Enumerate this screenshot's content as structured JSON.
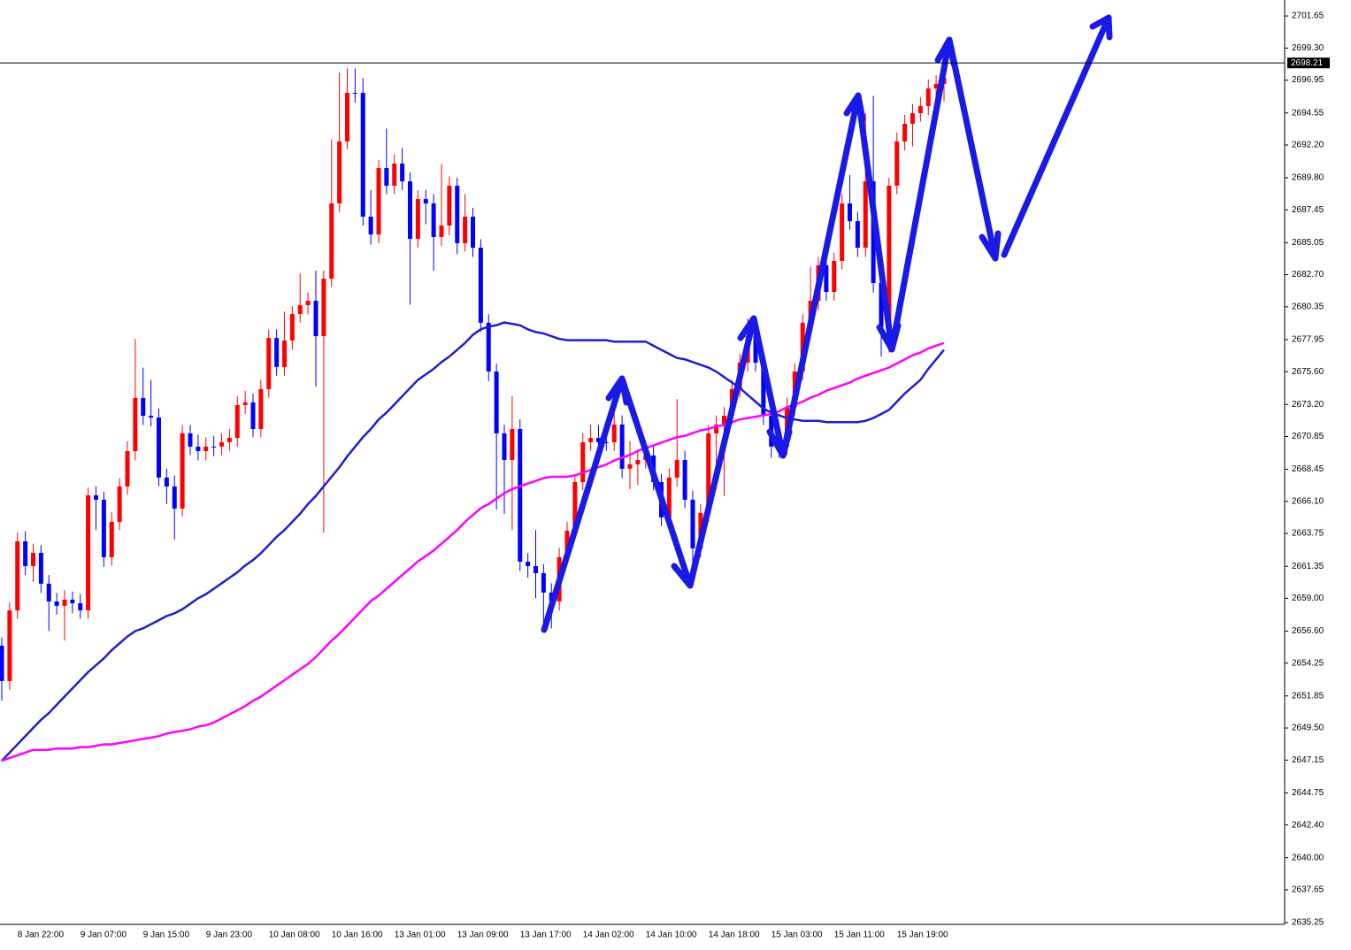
{
  "chart_data": {
    "type": "candlestick",
    "categories": [
      null,
      null,
      "8 Jan 22:00",
      null,
      null,
      null,
      null,
      null,
      null,
      null,
      "9 Jan 07:00",
      null,
      null,
      null,
      null,
      null,
      null,
      null,
      "9 Jan 15:00",
      null,
      null,
      null,
      null,
      null,
      null,
      null,
      "9 Jan 23:00",
      null,
      null,
      null,
      null,
      null,
      null,
      null,
      "10 Jan 08:00",
      null,
      null,
      null,
      null,
      null,
      null,
      null,
      "10 Jan 16:00",
      null,
      null,
      null,
      null,
      null,
      null,
      null,
      "13 Jan 01:00",
      null,
      null,
      null,
      null,
      null,
      null,
      null,
      "13 Jan 09:00",
      null,
      null,
      null,
      null,
      null,
      null,
      null,
      "13 Jan 17:00",
      null,
      null,
      null,
      null,
      null,
      null,
      null,
      "14 Jan 02:00",
      null,
      null,
      null,
      null,
      null,
      null,
      null,
      "14 Jan 10:00",
      null,
      null,
      null,
      null,
      null,
      null,
      null,
      "14 Jan 18:00",
      null,
      null,
      null,
      null,
      null,
      null,
      null,
      "15 Jan 03:00",
      null,
      null,
      null,
      null,
      null,
      null,
      null,
      "15 Jan 11:00",
      null,
      null,
      null,
      null,
      null,
      null,
      null,
      "15 Jan 19:00",
      null,
      null,
      null,
      null,
      null,
      null
    ],
    "open": [
      2655.53,
      2652.94,
      2658.12,
      2663.17,
      2661.36,
      2662.33,
      2660.07,
      2658.77,
      2658.45,
      2658.9,
      2658.64,
      2658.12,
      2666.54,
      2666.22,
      2662.01,
      2664.6,
      2667.19,
      2669.78,
      2673.67,
      2672.37,
      2672.24,
      2667.84,
      2667.19,
      2665.57,
      2671.08,
      2670.11,
      2669.78,
      2670.11,
      2670.11,
      2670.43,
      2670.75,
      2673.15,
      2673.35,
      2671.4,
      2674.32,
      2678.07,
      2675.94,
      2677.88,
      2679.82,
      2680.47,
      2680.79,
      2678.2,
      2682.41,
      2687.92,
      2692.46,
      2696.02,
      2696.02,
      2686.95,
      2685.65,
      2690.51,
      2689.22,
      2690.84,
      2689.54,
      2685.33,
      2688.24,
      2687.92,
      2685.46,
      2686.3,
      2689.22,
      2685.01,
      2686.95,
      2684.68,
      2679.18,
      2675.61,
      2671.08,
      2669.13,
      2671.4,
      2661.68,
      2661.36,
      2660.84,
      2659.42,
      2658.77,
      2662.01,
      2663.95,
      2667.51,
      2670.43,
      2670.75,
      2670.43,
      2670.43,
      2671.73,
      2668.49,
      2668.81,
      2669.13,
      2669.46,
      2667.51,
      2664.92,
      2667.84,
      2669.13,
      2666.22,
      2662.66,
      2665.25,
      2671.08,
      2671.73,
      2672.37,
      2674.32,
      2676.26,
      2678.2,
      2676.26,
      2672.37,
      2670.11,
      2670.11,
      2673.02,
      2675.61,
      2679.18,
      2680.79,
      2683.39,
      2681.44,
      2683.71,
      2687.92,
      2686.62,
      2684.68,
      2689.54,
      2682.09,
      2678.85,
      2689.22,
      2692.46,
      2693.75,
      2694.53,
      2695.05,
      2696.34,
      2696.67
    ],
    "high": [
      2656.13,
      2658.7,
      2663.8,
      2663.9,
      2663.0,
      2662.9,
      2660.7,
      2659.4,
      2659.6,
      2659.5,
      2659.3,
      2667.1,
      2667.2,
      2666.8,
      2665.3,
      2667.8,
      2670.5,
      2678.0,
      2675.9,
      2675.0,
      2672.9,
      2668.5,
      2668.0,
      2671.7,
      2671.7,
      2671.0,
      2670.8,
      2670.9,
      2671.1,
      2671.4,
      2673.8,
      2674.2,
      2674.0,
      2675.0,
      2678.7,
      2678.7,
      2680.0,
      2680.4,
      2682.8,
      2681.4,
      2683.0,
      2683.0,
      2692.6,
      2697.5,
      2697.8,
      2697.8,
      2697.1,
      2688.9,
      2691.1,
      2693.4,
      2691.5,
      2692.0,
      2690.2,
      2688.9,
      2688.9,
      2688.6,
      2690.8,
      2689.9,
      2689.8,
      2688.6,
      2687.6,
      2685.3,
      2679.8,
      2676.2,
      2671.7,
      2673.8,
      2672.1,
      2662.3,
      2664.0,
      2661.5,
      2660.1,
      2662.7,
      2664.6,
      2668.1,
      2671.1,
      2671.7,
      2671.7,
      2671.1,
      2673.5,
      2672.4,
      2670.5,
      2669.8,
      2670.1,
      2670.1,
      2668.1,
      2668.5,
      2673.6,
      2669.8,
      2666.9,
      2665.9,
      2671.7,
      2672.4,
      2673.0,
      2675.0,
      2676.9,
      2679.5,
      2678.8,
      2676.9,
      2673.0,
      2671.0,
      2673.7,
      2676.2,
      2679.8,
      2683.3,
      2684.0,
      2684.6,
      2684.3,
      2688.6,
      2690.0,
      2687.3,
      2694.5,
      2695.8,
      2682.7,
      2689.8,
      2693.1,
      2694.4,
      2695.2,
      2695.7,
      2697.0,
      2697.3,
      2698.3
    ],
    "low": [
      2651.5,
      2652.3,
      2657.5,
      2660.7,
      2660.2,
      2659.4,
      2656.6,
      2657.8,
      2655.9,
      2657.9,
      2657.5,
      2657.5,
      2664.0,
      2661.3,
      2661.4,
      2664.0,
      2666.6,
      2669.1,
      2671.7,
      2671.6,
      2667.2,
      2665.9,
      2663.3,
      2665.0,
      2669.5,
      2669.1,
      2669.1,
      2669.4,
      2669.5,
      2669.8,
      2670.1,
      2672.5,
      2670.8,
      2670.8,
      2673.7,
      2675.3,
      2675.3,
      2677.2,
      2679.2,
      2679.8,
      2674.5,
      2663.8,
      2681.8,
      2687.3,
      2691.9,
      2695.3,
      2686.3,
      2684.9,
      2685.0,
      2688.6,
      2688.6,
      2688.9,
      2680.5,
      2684.7,
      2686.4,
      2683.0,
      2684.8,
      2685.6,
      2684.2,
      2684.4,
      2684.0,
      2678.5,
      2674.9,
      2665.5,
      2665.2,
      2664.0,
      2661.0,
      2660.5,
      2659.0,
      2656.8,
      2656.8,
      2658.1,
      2661.4,
      2663.3,
      2666.9,
      2669.8,
      2669.8,
      2669.8,
      2669.8,
      2667.8,
      2667.0,
      2667.3,
      2668.5,
      2666.9,
      2664.3,
      2664.3,
      2667.2,
      2665.6,
      2661.3,
      2662.0,
      2664.6,
      2667.0,
      2666.5,
      2671.7,
      2673.7,
      2675.6,
      2675.6,
      2671.7,
      2669.3,
      2669.3,
      2669.5,
      2672.4,
      2675.0,
      2678.5,
      2680.1,
      2680.8,
      2680.8,
      2683.1,
      2686.0,
      2684.0,
      2684.0,
      2681.4,
      2676.7,
      2677.0,
      2688.6,
      2691.8,
      2692.1,
      2693.9,
      2694.4,
      2694.9,
      2695.4
    ],
    "close": [
      2652.94,
      2658.12,
      2663.17,
      2661.36,
      2662.33,
      2660.07,
      2658.77,
      2658.45,
      2658.9,
      2658.64,
      2658.12,
      2666.54,
      2666.22,
      2662.01,
      2664.6,
      2667.19,
      2669.78,
      2673.67,
      2672.37,
      2672.24,
      2667.84,
      2667.19,
      2665.57,
      2671.08,
      2670.11,
      2669.78,
      2670.11,
      2670.11,
      2670.43,
      2670.75,
      2673.15,
      2673.35,
      2671.4,
      2674.32,
      2678.07,
      2675.94,
      2677.88,
      2679.82,
      2680.47,
      2680.79,
      2678.2,
      2682.41,
      2687.92,
      2692.46,
      2696.02,
      2696.02,
      2686.95,
      2685.65,
      2690.51,
      2689.22,
      2690.84,
      2689.54,
      2685.33,
      2688.24,
      2687.92,
      2685.46,
      2686.3,
      2689.22,
      2685.01,
      2686.95,
      2684.68,
      2679.18,
      2675.61,
      2671.08,
      2669.13,
      2671.4,
      2661.68,
      2661.36,
      2660.84,
      2659.42,
      2658.77,
      2662.01,
      2663.95,
      2667.51,
      2670.43,
      2670.75,
      2670.43,
      2670.43,
      2671.73,
      2668.49,
      2668.81,
      2669.13,
      2669.46,
      2667.51,
      2664.92,
      2667.84,
      2669.13,
      2666.22,
      2662.66,
      2665.25,
      2671.08,
      2671.73,
      2672.37,
      2674.32,
      2676.26,
      2678.2,
      2676.26,
      2672.37,
      2670.11,
      2670.11,
      2673.02,
      2675.61,
      2679.18,
      2680.79,
      2683.39,
      2681.44,
      2683.71,
      2687.92,
      2686.62,
      2684.68,
      2689.54,
      2682.09,
      2678.85,
      2689.22,
      2692.46,
      2693.75,
      2694.53,
      2695.05,
      2696.34,
      2696.67,
      2697.12
    ],
    "up_color": "#ff0000",
    "down_color": "#0000ff",
    "lines": [
      {
        "color": "#1e1ed2",
        "values": [
          2647.1,
          2647.7,
          2648.3,
          2648.9,
          2649.5,
          2650.1,
          2650.6,
          2651.2,
          2651.8,
          2652.4,
          2653.0,
          2653.6,
          2654.1,
          2654.6,
          2655.2,
          2655.7,
          2656.2,
          2656.6,
          2656.8,
          2657.1,
          2657.4,
          2657.7,
          2657.9,
          2658.2,
          2658.6,
          2659.0,
          2659.3,
          2659.7,
          2660.1,
          2660.5,
          2660.9,
          2661.4,
          2661.8,
          2662.3,
          2662.9,
          2663.5,
          2664.0,
          2664.6,
          2665.2,
          2665.9,
          2666.5,
          2667.2,
          2667.9,
          2668.6,
          2669.4,
          2670.1,
          2670.8,
          2671.4,
          2672.1,
          2672.6,
          2673.2,
          2673.8,
          2674.4,
          2675.0,
          2675.4,
          2675.8,
          2676.3,
          2676.7,
          2677.2,
          2677.7,
          2678.3,
          2678.7,
          2678.9,
          2679.0,
          2679.2,
          2679.1,
          2679.0,
          2678.7,
          2678.5,
          2678.4,
          2678.2,
          2678.0,
          2677.9,
          2677.9,
          2677.9,
          2677.9,
          2677.9,
          2677.9,
          2677.8,
          2677.8,
          2677.8,
          2677.8,
          2677.8,
          2677.5,
          2677.2,
          2676.9,
          2676.6,
          2676.5,
          2676.3,
          2676.1,
          2675.9,
          2675.6,
          2675.2,
          2674.8,
          2674.4,
          2673.9,
          2673.4,
          2672.9,
          2672.6,
          2672.4,
          2672.2,
          2672.1,
          2672.0,
          2672.0,
          2672.0,
          2671.9,
          2671.9,
          2671.9,
          2671.9,
          2671.9,
          2672.0,
          2672.2,
          2672.5,
          2672.8,
          2673.4,
          2674.0,
          2674.5,
          2675.0,
          2675.8,
          2676.5,
          2677.2
        ]
      },
      {
        "color": "#ff00ff",
        "values": [
          2647.1,
          2647.3,
          2647.5,
          2647.7,
          2647.9,
          2647.9,
          2647.9,
          2648.0,
          2648.0,
          2648.0,
          2648.1,
          2648.1,
          2648.2,
          2648.3,
          2648.3,
          2648.4,
          2648.5,
          2648.6,
          2648.7,
          2648.8,
          2648.9,
          2649.1,
          2649.2,
          2649.3,
          2649.4,
          2649.6,
          2649.7,
          2649.9,
          2650.2,
          2650.5,
          2650.8,
          2651.1,
          2651.5,
          2651.8,
          2652.2,
          2652.6,
          2653.0,
          2653.4,
          2653.8,
          2654.2,
          2654.7,
          2655.3,
          2655.9,
          2656.4,
          2657.0,
          2657.6,
          2658.2,
          2658.8,
          2659.2,
          2659.7,
          2660.2,
          2660.7,
          2661.2,
          2661.7,
          2662.1,
          2662.5,
          2663.0,
          2663.5,
          2664.0,
          2664.6,
          2665.1,
          2665.6,
          2665.9,
          2666.3,
          2666.7,
          2667.0,
          2667.2,
          2667.4,
          2667.6,
          2667.8,
          2667.9,
          2667.9,
          2667.9,
          2668.0,
          2668.2,
          2668.4,
          2668.6,
          2668.8,
          2669.1,
          2669.3,
          2669.5,
          2669.8,
          2670.0,
          2670.2,
          2670.4,
          2670.6,
          2670.8,
          2670.9,
          2671.1,
          2671.3,
          2671.4,
          2671.6,
          2671.7,
          2671.9,
          2672.1,
          2672.2,
          2672.3,
          2672.4,
          2672.5,
          2672.7,
          2673.0,
          2673.2,
          2673.4,
          2673.7,
          2673.9,
          2674.2,
          2674.4,
          2674.6,
          2674.8,
          2675.1,
          2675.3,
          2675.5,
          2675.7,
          2675.9,
          2676.2,
          2676.5,
          2676.8,
          2677.0,
          2677.3,
          2677.5,
          2677.7
        ]
      }
    ],
    "current_price": 2698.21,
    "ylim": [
      2635.12,
      2702.82
    ],
    "yticks": [
      2701.65,
      {
        "value": 2699.3,
        "label": "2699.30"
      },
      2696.95,
      2694.55,
      {
        "value": 2692.2,
        "label": "2692.20"
      },
      {
        "value": 2689.8,
        "label": "2689.80"
      },
      2687.45,
      2685.05,
      {
        "value": 2682.7,
        "label": "2682.70"
      },
      2680.35,
      2677.95,
      {
        "value": 2675.6,
        "label": "2675.60"
      },
      {
        "value": 2673.2,
        "label": "2673.20"
      },
      2670.85,
      2668.45,
      {
        "value": 2666.1,
        "label": "2666.10"
      },
      2663.75,
      2661.35,
      {
        "value": 2659,
        "label": "2659.00"
      },
      {
        "value": 2656.6,
        "label": "2656.60"
      },
      2654.25,
      2651.85,
      {
        "value": 2649.5,
        "label": "2649.50"
      },
      2647.15,
      2644.75,
      {
        "value": 2642.4,
        "label": "2642.40"
      },
      {
        "value": 2640,
        "label": "2640.00"
      },
      2637.65,
      2635.25
    ]
  }
}
